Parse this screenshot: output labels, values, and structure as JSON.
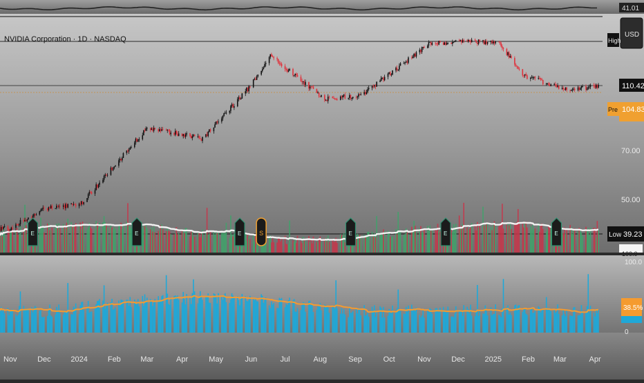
{
  "header": {
    "title": "NVIDIA Corporation · 1D · NASDAQ",
    "currency": "USD"
  },
  "top_strip": {
    "value_label": "41.01"
  },
  "price_axis": {
    "ticks": [
      "70.00",
      "50.00"
    ],
    "high_tag": "High",
    "low_tag": "Low",
    "low_value": "39.23",
    "last_value": "110.42",
    "pre_tag": "Pre",
    "pre_value": "104.83",
    "partial_label": "100.0"
  },
  "lower_axis": {
    "top_label": "100.0",
    "bottom_label": "0",
    "value_label": "38.5%"
  },
  "time_axis": {
    "labels": [
      "Nov",
      "Dec",
      "2024",
      "Feb",
      "Mar",
      "Apr",
      "May",
      "Jun",
      "Jul",
      "Aug",
      "Sep",
      "Oct",
      "Nov",
      "Dec",
      "2025",
      "Feb",
      "Mar",
      "Apr"
    ]
  },
  "markers": {
    "earnings_glyph": "E",
    "dividend_glyph": "S"
  },
  "colors": {
    "up": "#26a69a",
    "down": "#ef5350",
    "candle_up": "#111111",
    "candle_down": "#e0313b",
    "ma_line": "#e8e8e8",
    "pre_tag": "#f0a030",
    "histogram": "#1fa8d8",
    "histogram_ma": "#f59b2f",
    "vol_up": "#3fa36a",
    "vol_down": "#c8354a"
  },
  "chart_data": {
    "type": "candlestick",
    "x_range": [
      "2023-10-23",
      "2025-04-04"
    ],
    "y_range": [
      39.23,
      153
    ],
    "key_points": [
      {
        "date": "2023-10-31",
        "close": 40.8
      },
      {
        "date": "2023-12-01",
        "close": 46.8
      },
      {
        "date": "2024-01-02",
        "close": 48.2
      },
      {
        "date": "2024-02-01",
        "close": 63.0
      },
      {
        "date": "2024-03-01",
        "close": 82.3
      },
      {
        "date": "2024-04-19",
        "close": 76.2
      },
      {
        "date": "2024-05-31",
        "close": 109.6
      },
      {
        "date": "2024-06-18",
        "close": 135.6
      },
      {
        "date": "2024-08-05",
        "close": 100.5
      },
      {
        "date": "2024-09-06",
        "close": 102.8
      },
      {
        "date": "2024-11-07",
        "close": 148.9
      },
      {
        "date": "2025-01-06",
        "close": 149.4
      },
      {
        "date": "2025-01-27",
        "close": 118.4
      },
      {
        "date": "2025-03-10",
        "close": 106.9
      },
      {
        "date": "2025-04-03",
        "close": 110.42
      }
    ],
    "last_close": 110.42,
    "pre_market": 104.83,
    "range_low": 39.23,
    "earnings_dates": [
      "2023-11-21",
      "2024-02-21",
      "2024-05-22",
      "2024-08-28",
      "2024-11-20",
      "2025-02-26"
    ],
    "dividend_dates": [
      "2024-06-10"
    ],
    "lower_panel": {
      "type": "bar",
      "y_range": [
        0,
        100
      ],
      "last_value": 38.5
    }
  }
}
